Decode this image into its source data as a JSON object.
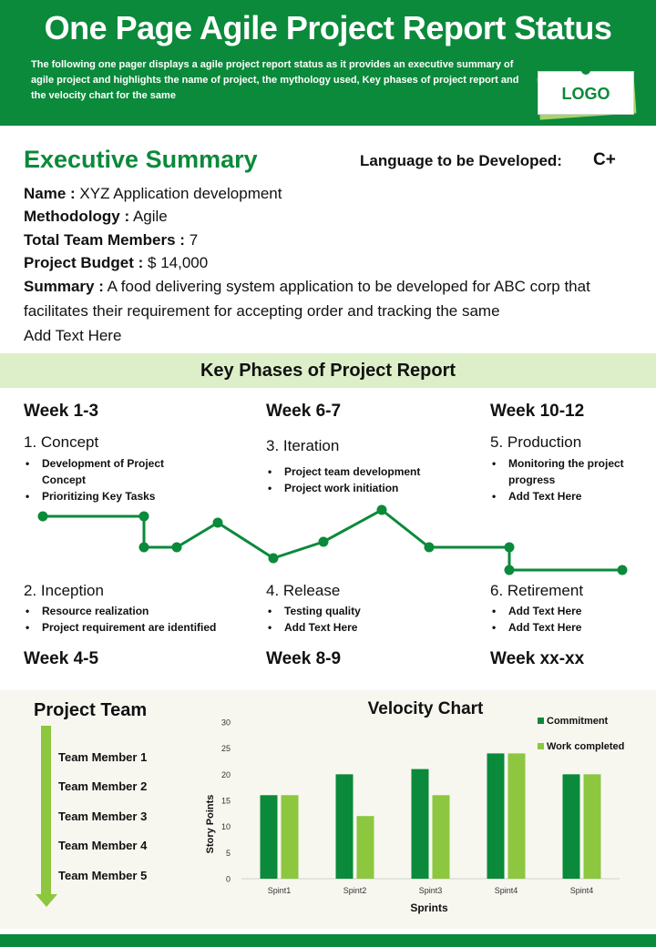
{
  "header": {
    "title": "One Page Agile Project Report Status",
    "description": "The following one pager displays a agile project report status as it provides an executive summary of agile project and highlights the name of project, the mythology used, Key phases of project report and the velocity chart for the same",
    "logo": "LOGO"
  },
  "executive_summary": {
    "title": "Executive Summary",
    "language_label": "Language to be Developed:",
    "language_value": "C+",
    "name_label": "Name :",
    "name_value": " XYZ Application development",
    "methodology_label": "Methodology :",
    "methodology_value": " Agile",
    "team_label": "Total Team Members :",
    "team_value": " 7",
    "budget_label": "Project Budget :",
    "budget_value": " $ 14,000",
    "summary_label": "Summary :",
    "summary_value": "  A  food delivering system  application to be developed for ABC corp that facilitates their requirement for accepting order and tracking the same",
    "extra_text": "Add Text Here"
  },
  "phases": {
    "title": "Key Phases of Project Report",
    "top": [
      {
        "week": "Week 1-3",
        "name": "1. Concept",
        "bullets": [
          "Development of Project Concept",
          "Prioritizing Key Tasks"
        ]
      },
      {
        "week": "Week 6-7",
        "name": "3. Iteration",
        "bullets": [
          "Project team development",
          "Project work initiation"
        ]
      },
      {
        "week": "Week 10-12",
        "name": "5. Production",
        "bullets": [
          "Monitoring the project progress",
          "Add Text Here"
        ]
      }
    ],
    "bottom": [
      {
        "week": "Week 4-5",
        "name": "2. Inception",
        "bullets": [
          "Resource realization",
          "Project requirement are identified"
        ]
      },
      {
        "week": "Week 8-9",
        "name": "4. Release",
        "bullets": [
          "Testing quality",
          "Add Text Here"
        ]
      },
      {
        "week": "Week xx-xx",
        "name": "6. Retirement",
        "bullets": [
          "Add Text Here",
          "Add Text Here"
        ]
      }
    ]
  },
  "team": {
    "title": "Project Team",
    "members": [
      "Team Member 1",
      "Team Member 2",
      "Team Member 3",
      "Team Member 4",
      "Team Member 5"
    ]
  },
  "colors": {
    "brand_green": "#0a8a3a",
    "light_green": "#8dc63f",
    "band_green": "#dcefc9"
  },
  "chart_data": {
    "type": "bar",
    "title": "Velocity Chart",
    "xlabel": "Sprints",
    "ylabel": "Story Points",
    "categories": [
      "Spint1",
      "Spint2",
      "Spint3",
      "Spint4",
      "Spint4"
    ],
    "series": [
      {
        "name": "Commitment",
        "values": [
          16,
          20,
          21,
          24,
          20
        ],
        "color": "#0a8a3a"
      },
      {
        "name": "Work completed",
        "values": [
          16,
          12,
          16,
          24,
          20
        ],
        "color": "#8dc63f"
      }
    ],
    "ylim": [
      0,
      30
    ],
    "yticks": [
      "0",
      "5",
      "10",
      "15",
      "20",
      "25",
      "30"
    ],
    "legend": "top-right",
    "grid": false
  }
}
